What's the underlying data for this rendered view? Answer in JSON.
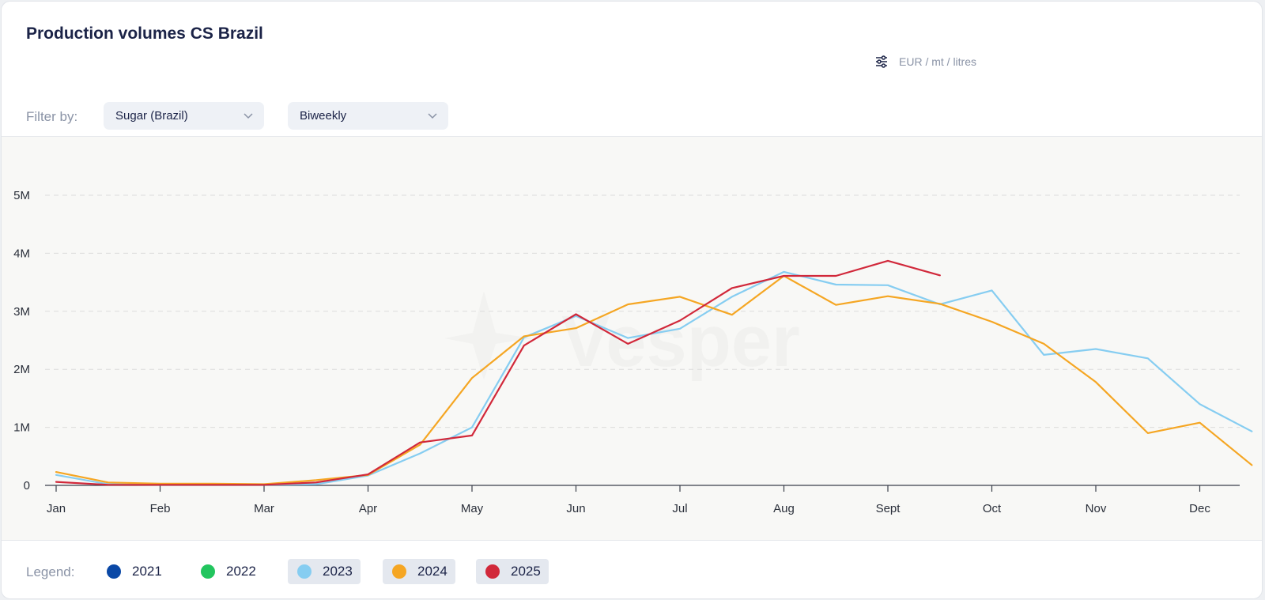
{
  "title": "Production volumes CS Brazil",
  "units_label": "EUR / mt / litres",
  "filter": {
    "label": "Filter by:",
    "product_value": "Sugar (Brazil)",
    "frequency_value": "Biweekly"
  },
  "watermark": "Vesper",
  "legend": {
    "label": "Legend:",
    "items": [
      {
        "label": "2021",
        "color": "#0a48a6",
        "active": false
      },
      {
        "label": "2022",
        "color": "#22c55e",
        "active": false
      },
      {
        "label": "2023",
        "color": "#86cdf1",
        "active": true
      },
      {
        "label": "2024",
        "color": "#f5a623",
        "active": true
      },
      {
        "label": "2025",
        "color": "#d1283a",
        "active": true
      }
    ]
  },
  "chart_data": {
    "type": "line",
    "title": "Production volumes CS Brazil",
    "xlabel": "",
    "ylabel": "",
    "x_ticks": [
      "Jan",
      "Feb",
      "Mar",
      "Apr",
      "May",
      "Jun",
      "Jul",
      "Aug",
      "Sept",
      "Oct",
      "Nov",
      "Dec"
    ],
    "y_ticks": [
      "0",
      "1M",
      "2M",
      "3M",
      "4M",
      "5M"
    ],
    "ylim": [
      0,
      5000000
    ],
    "grid": true,
    "x_unit": "month index (0 = Jan, 11 = Dec)",
    "series": [
      {
        "name": "2023",
        "color": "#86cdf1",
        "x": [
          0,
          0.5,
          1,
          1.5,
          2,
          2.5,
          3,
          3.5,
          4,
          4.5,
          5,
          5.5,
          6,
          6.5,
          7,
          7.5,
          8,
          8.5,
          9,
          9.5,
          10,
          10.5,
          11,
          11.5
        ],
        "y": [
          180000,
          20000,
          10000,
          10000,
          10000,
          20000,
          170000,
          550000,
          1000000,
          2550000,
          2920000,
          2540000,
          2700000,
          3250000,
          3680000,
          3460000,
          3450000,
          3120000,
          3360000,
          2250000,
          2350000,
          2190000,
          1400000,
          930000
        ]
      },
      {
        "name": "2024",
        "color": "#f5a623",
        "x": [
          0,
          0.5,
          1,
          1.5,
          2,
          2.5,
          3,
          3.5,
          4,
          4.5,
          5,
          5.5,
          6,
          6.5,
          7,
          7.5,
          8,
          8.5,
          9,
          9.5,
          10,
          10.5,
          11,
          11.5
        ],
        "y": [
          230000,
          50000,
          30000,
          30000,
          20000,
          90000,
          180000,
          700000,
          1850000,
          2570000,
          2710000,
          3120000,
          3250000,
          2940000,
          3610000,
          3110000,
          3260000,
          3130000,
          2820000,
          2440000,
          1780000,
          900000,
          1080000,
          350000
        ]
      },
      {
        "name": "2025",
        "color": "#d1283a",
        "x": [
          0,
          0.5,
          1,
          1.5,
          2,
          2.5,
          3,
          3.5,
          4,
          4.5,
          5,
          5.5,
          6,
          6.5,
          7,
          7.5,
          8,
          8.5
        ],
        "y": [
          60000,
          10000,
          10000,
          10000,
          10000,
          50000,
          190000,
          740000,
          860000,
          2410000,
          2950000,
          2440000,
          2840000,
          3400000,
          3610000,
          3610000,
          3870000,
          3620000
        ]
      }
    ]
  }
}
